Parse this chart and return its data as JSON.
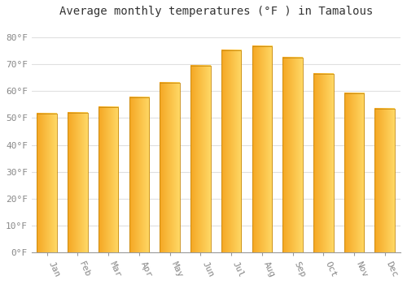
{
  "title": "Average monthly temperatures (°F ) in Tamalous",
  "months": [
    "Jan",
    "Feb",
    "Mar",
    "Apr",
    "May",
    "Jun",
    "Jul",
    "Aug",
    "Sep",
    "Oct",
    "Nov",
    "Dec"
  ],
  "values": [
    51.5,
    52.0,
    54.0,
    57.5,
    63.0,
    69.5,
    75.0,
    76.5,
    72.5,
    66.5,
    59.0,
    53.5
  ],
  "bar_color_left": "#F5A623",
  "bar_color_right": "#FFD966",
  "bar_edge_color": "#C8880A",
  "background_color": "#FFFFFF",
  "grid_color": "#E0E0E0",
  "ylim": [
    0,
    85
  ],
  "yticks": [
    0,
    10,
    20,
    30,
    40,
    50,
    60,
    70,
    80
  ],
  "title_fontsize": 10,
  "tick_fontsize": 8,
  "axis_label_color": "#888888"
}
